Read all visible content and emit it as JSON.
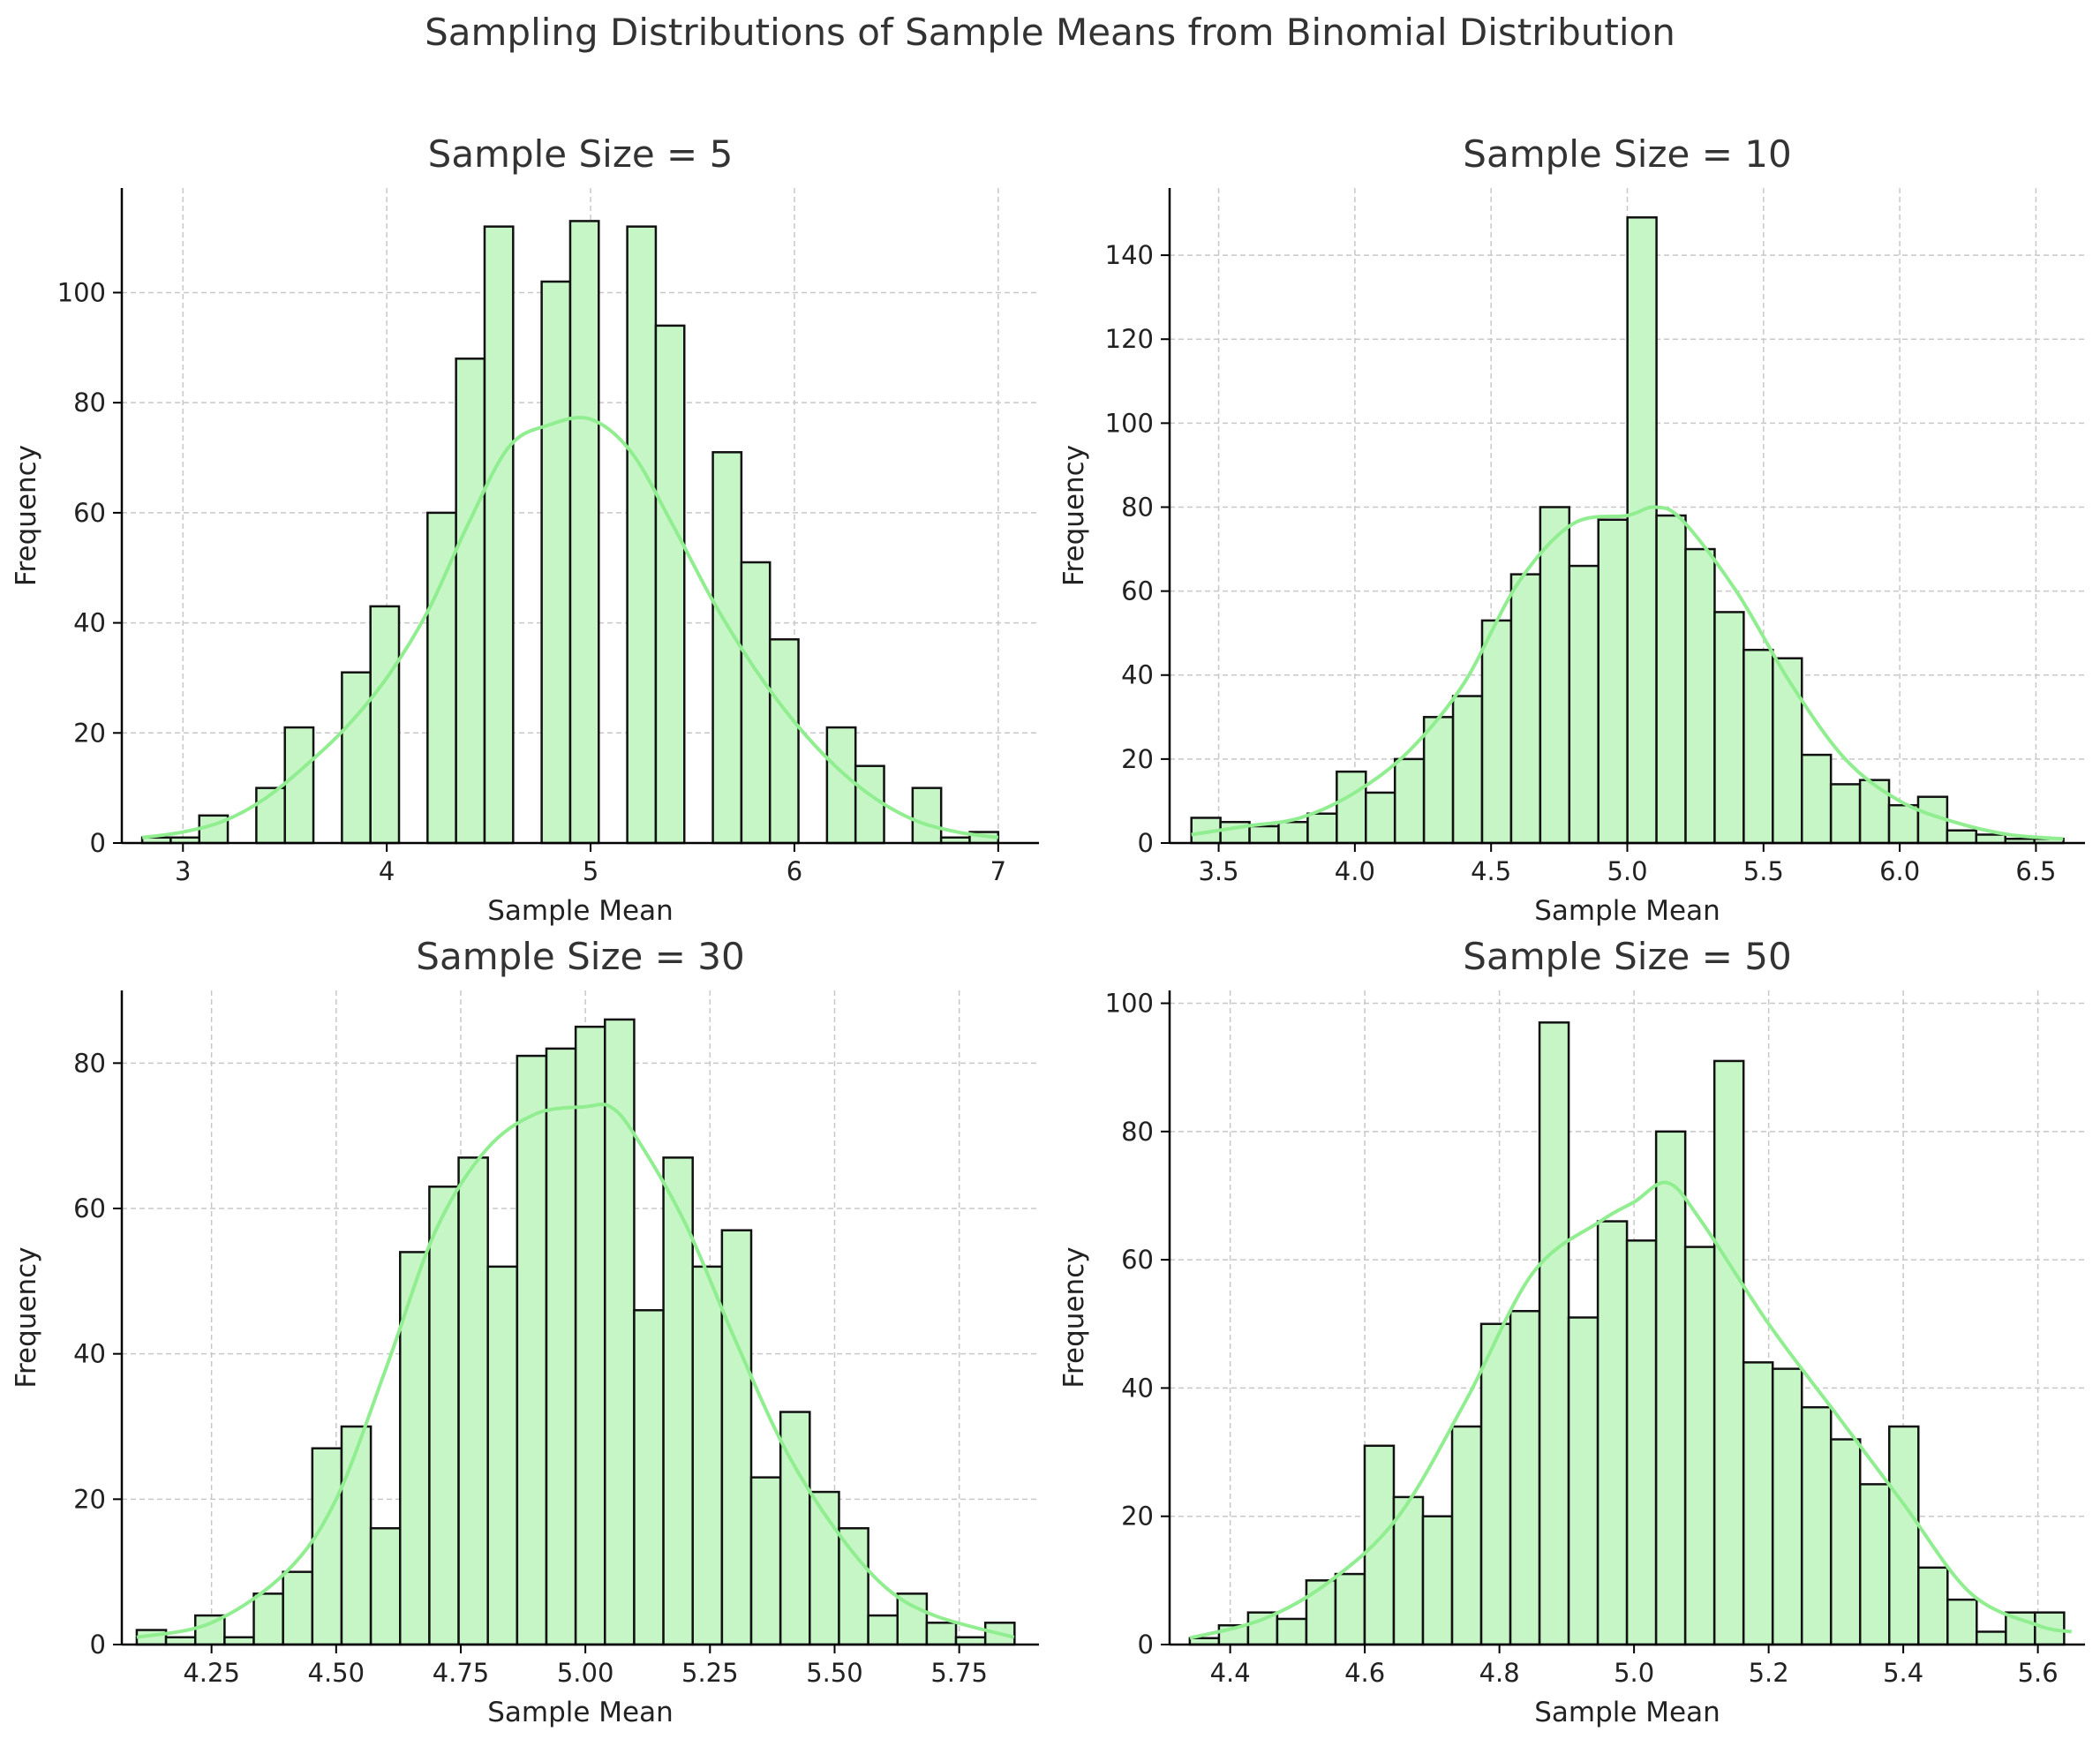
{
  "title": "Sampling Distributions of Sample Means from Binomial Distribution",
  "colors": {
    "bar_fill": "#c6f5c6",
    "bar_edge": "#111111",
    "kde": "#90ee90",
    "grid": "#c8c8c8"
  },
  "chart_data": [
    {
      "type": "bar",
      "title": "Sample Size = 5",
      "xlabel": "Sample Mean",
      "ylabel": "Frequency",
      "grid": true,
      "xlim": [
        2.7,
        7.2
      ],
      "ylim": [
        0,
        119
      ],
      "xticks": [
        3,
        4,
        5,
        6,
        7
      ],
      "xtick_decimals": 0,
      "yticks": [
        0,
        20,
        40,
        60,
        80,
        100
      ],
      "bin_start": 2.8,
      "bin_width": 0.14,
      "values": [
        1,
        1,
        5,
        0,
        10,
        21,
        0,
        31,
        43,
        0,
        60,
        88,
        112,
        0,
        102,
        113,
        0,
        112,
        94,
        0,
        71,
        51,
        37,
        0,
        21,
        14,
        0,
        10,
        1,
        2
      ],
      "kde": [
        [
          2.8,
          1
        ],
        [
          3.0,
          2
        ],
        [
          3.2,
          4
        ],
        [
          3.4,
          8
        ],
        [
          3.6,
          14
        ],
        [
          3.8,
          21
        ],
        [
          4.0,
          30
        ],
        [
          4.2,
          42
        ],
        [
          4.4,
          58
        ],
        [
          4.6,
          72
        ],
        [
          4.8,
          76
        ],
        [
          5.0,
          77
        ],
        [
          5.2,
          71
        ],
        [
          5.4,
          58
        ],
        [
          5.6,
          44
        ],
        [
          5.8,
          32
        ],
        [
          6.0,
          22
        ],
        [
          6.2,
          14
        ],
        [
          6.4,
          8
        ],
        [
          6.6,
          4
        ],
        [
          6.8,
          2
        ],
        [
          7.0,
          1
        ]
      ]
    },
    {
      "type": "bar",
      "title": "Sample Size = 10",
      "xlabel": "Sample Mean",
      "ylabel": "Frequency",
      "grid": true,
      "xlim": [
        3.32,
        6.68
      ],
      "ylim": [
        0,
        156
      ],
      "xticks": [
        3.5,
        4.0,
        4.5,
        5.0,
        5.5,
        6.0,
        6.5
      ],
      "xtick_decimals": 1,
      "yticks": [
        0,
        20,
        40,
        60,
        80,
        100,
        120,
        140
      ],
      "bin_start": 3.4,
      "bin_width": 0.1067,
      "values": [
        6,
        5,
        4,
        5,
        7,
        17,
        12,
        20,
        30,
        35,
        53,
        64,
        80,
        66,
        77,
        149,
        78,
        70,
        55,
        46,
        44,
        21,
        14,
        15,
        9,
        11,
        3,
        2,
        1,
        1
      ],
      "kde": [
        [
          3.4,
          2
        ],
        [
          3.6,
          4
        ],
        [
          3.8,
          6
        ],
        [
          4.0,
          12
        ],
        [
          4.2,
          22
        ],
        [
          4.4,
          38
        ],
        [
          4.6,
          62
        ],
        [
          4.8,
          76
        ],
        [
          5.0,
          78
        ],
        [
          5.1,
          80
        ],
        [
          5.2,
          77
        ],
        [
          5.4,
          60
        ],
        [
          5.6,
          38
        ],
        [
          5.8,
          20
        ],
        [
          6.0,
          10
        ],
        [
          6.2,
          5
        ],
        [
          6.4,
          2
        ],
        [
          6.6,
          1
        ]
      ]
    },
    {
      "type": "bar",
      "title": "Sample Size = 30",
      "xlabel": "Sample Mean",
      "ylabel": "Frequency",
      "grid": true,
      "xlim": [
        4.07,
        5.91
      ],
      "ylim": [
        0,
        90
      ],
      "xticks": [
        4.25,
        4.5,
        4.75,
        5.0,
        5.25,
        5.5,
        5.75
      ],
      "xtick_decimals": 2,
      "yticks": [
        0,
        20,
        40,
        60,
        80
      ],
      "bin_start": 4.1,
      "bin_width": 0.0587,
      "values": [
        2,
        1,
        4,
        1,
        7,
        10,
        27,
        30,
        16,
        54,
        63,
        67,
        52,
        81,
        82,
        85,
        86,
        46,
        67,
        52,
        57,
        23,
        32,
        21,
        16,
        4,
        7,
        3,
        1,
        3
      ],
      "kde": [
        [
          4.1,
          1
        ],
        [
          4.25,
          3
        ],
        [
          4.4,
          10
        ],
        [
          4.5,
          20
        ],
        [
          4.6,
          38
        ],
        [
          4.7,
          57
        ],
        [
          4.8,
          68
        ],
        [
          4.9,
          73
        ],
        [
          5.0,
          74
        ],
        [
          5.05,
          74
        ],
        [
          5.1,
          70
        ],
        [
          5.2,
          58
        ],
        [
          5.3,
          42
        ],
        [
          5.4,
          27
        ],
        [
          5.5,
          16
        ],
        [
          5.6,
          8
        ],
        [
          5.7,
          4
        ],
        [
          5.86,
          1
        ]
      ]
    },
    {
      "type": "bar",
      "title": "Sample Size = 50",
      "xlabel": "Sample Mean",
      "ylabel": "Frequency",
      "grid": true,
      "xlim": [
        4.31,
        5.67
      ],
      "ylim": [
        0,
        102
      ],
      "xticks": [
        4.4,
        4.6,
        4.8,
        5.0,
        5.2,
        5.4,
        5.6
      ],
      "xtick_decimals": 1,
      "yticks": [
        0,
        20,
        40,
        60,
        80,
        100
      ],
      "bin_start": 4.34,
      "bin_width": 0.0433,
      "values": [
        1,
        3,
        5,
        4,
        10,
        11,
        31,
        23,
        20,
        34,
        50,
        52,
        97,
        51,
        66,
        63,
        80,
        62,
        91,
        44,
        43,
        37,
        32,
        25,
        34,
        12,
        7,
        2,
        5,
        5
      ],
      "kde": [
        [
          4.34,
          1
        ],
        [
          4.45,
          4
        ],
        [
          4.55,
          10
        ],
        [
          4.65,
          20
        ],
        [
          4.75,
          38
        ],
        [
          4.85,
          58
        ],
        [
          4.95,
          66
        ],
        [
          5.0,
          69
        ],
        [
          5.05,
          72
        ],
        [
          5.1,
          66
        ],
        [
          5.2,
          50
        ],
        [
          5.3,
          36
        ],
        [
          5.4,
          22
        ],
        [
          5.5,
          8
        ],
        [
          5.6,
          3
        ],
        [
          5.65,
          2
        ]
      ]
    }
  ]
}
